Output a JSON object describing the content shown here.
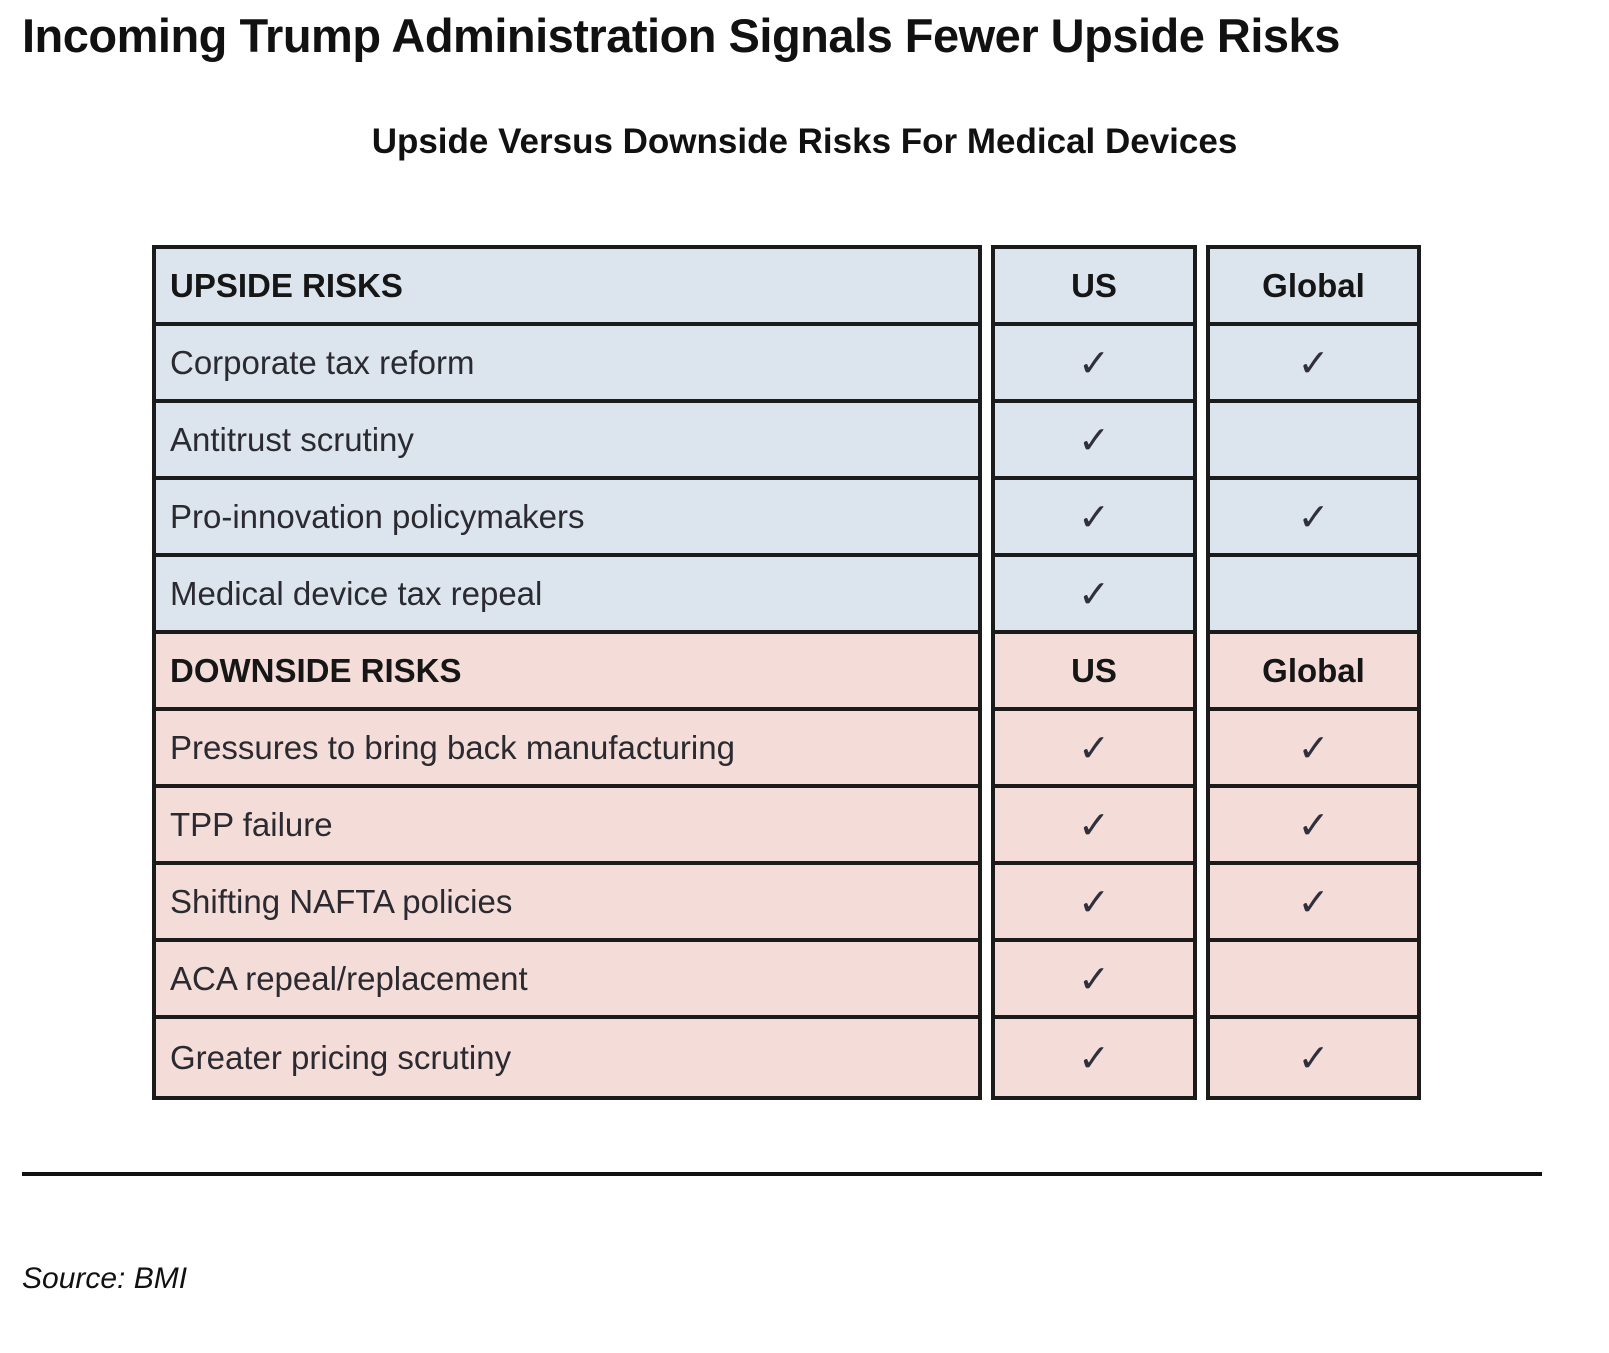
{
  "page": {
    "title": "Incoming Trump Administration Signals Fewer Upside Risks",
    "subtitle": "Upside Versus Downside Risks For Medical Devices",
    "source": "Source: BMI"
  },
  "colors": {
    "upside_bg": "#dce4ee",
    "downside_bg": "#f4ddd9",
    "border": "#1b1b1b",
    "check": "#30303c"
  },
  "chart_data": {
    "type": "table",
    "title": "Upside Versus Downside Risks For Medical Devices",
    "check_glyph": "✓",
    "sections": [
      {
        "header": "UPSIDE RISKS",
        "theme": "upside",
        "columns": [
          "US",
          "Global"
        ],
        "rows": [
          {
            "label": "Corporate tax reform",
            "us": true,
            "global": true
          },
          {
            "label": "Antitrust scrutiny",
            "us": true,
            "global": false
          },
          {
            "label": "Pro-innovation policymakers",
            "us": true,
            "global": true
          },
          {
            "label": "Medical device tax repeal",
            "us": true,
            "global": false
          }
        ]
      },
      {
        "header": "DOWNSIDE RISKS",
        "theme": "downside",
        "columns": [
          "US",
          "Global"
        ],
        "rows": [
          {
            "label": "Pressures to bring back manufacturing",
            "us": true,
            "global": true
          },
          {
            "label": "TPP failure",
            "us": true,
            "global": true
          },
          {
            "label": "Shifting NAFTA policies",
            "us": true,
            "global": true
          },
          {
            "label": "ACA repeal/replacement",
            "us": true,
            "global": false
          },
          {
            "label": "Greater pricing scrutiny",
            "us": true,
            "global": true
          }
        ]
      }
    ]
  }
}
